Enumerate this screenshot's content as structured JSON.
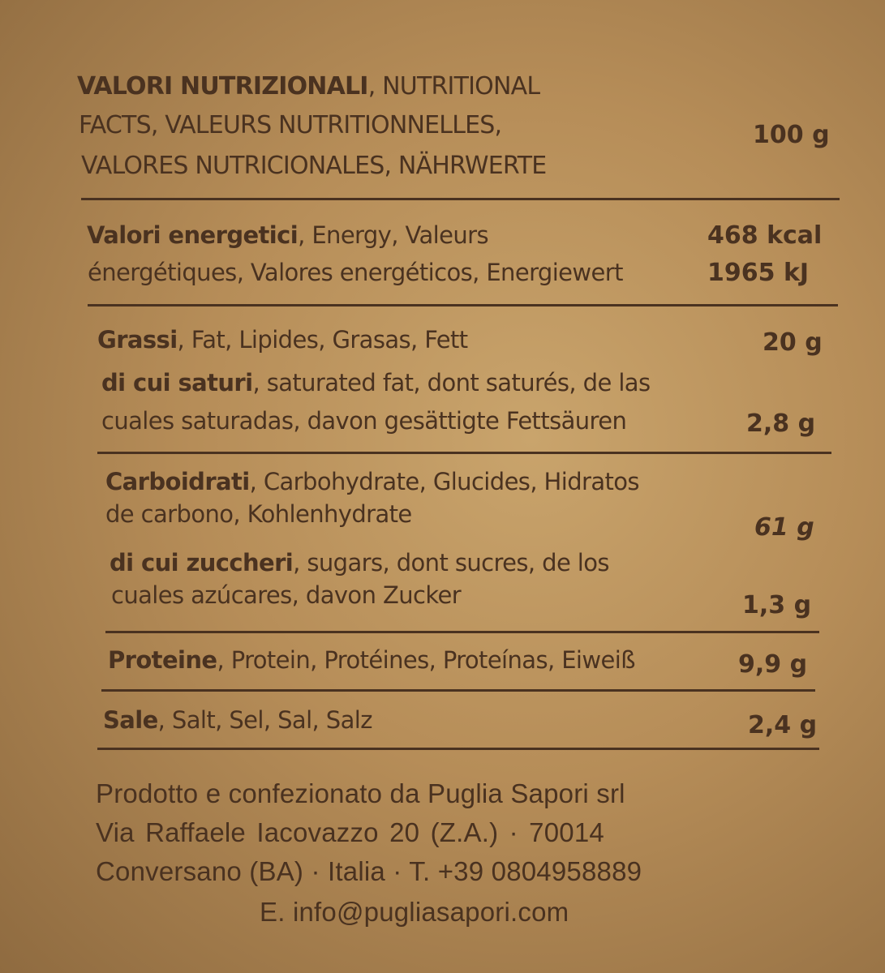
{
  "header": {
    "lines": [
      {
        "bold": "VALORI NUTRIZIONALI",
        "rest": ", NUTRITIONAL"
      },
      {
        "bold": "",
        "rest": "FACTS, VALEURS NUTRITIONNELLES,"
      },
      {
        "bold": "",
        "rest": "VALORES NUTRICIONALES, NÄHRWERTE"
      }
    ],
    "per": "100 g"
  },
  "energy": {
    "line1_bold": "Valori energetici",
    "line1_rest": ", Energy, Valeurs",
    "line2": "énergétiques, Valores energéticos, Energiewert",
    "kcal": "468  kcal",
    "kj": "1965  kJ"
  },
  "fat": {
    "bold": "Grassi",
    "rest": ", Fat, Lipides, Grasas, Fett",
    "value": "20 g"
  },
  "saturated": {
    "line1_bold": "di cui saturi",
    "line1_rest": ", saturated fat, dont saturés, de las",
    "line2": "cuales saturadas, davon gesättigte Fettsäuren",
    "value": "2,8 g"
  },
  "carbs": {
    "line1_bold": "Carboidrati",
    "line1_rest": ", Carbohydrate, Glucides, Hidratos",
    "line2": "de carbono, Kohlenhydrate",
    "value": "61 g"
  },
  "sugars": {
    "line1_bold": "di cui zuccheri",
    "line1_rest": ", sugars, dont sucres, de los",
    "line2": "cuales azúcares, davon Zucker",
    "value": "1,3 g"
  },
  "protein": {
    "bold": "Proteine",
    "rest": ", Protein, Protéines, Proteínas, Eiweiß",
    "value": "9,9 g"
  },
  "salt": {
    "bold": "Sale",
    "rest": ", Salt, Sel, Sal, Salz",
    "value": "2,4 g"
  },
  "footer": {
    "lines": [
      "Prodotto e confezionato da Puglia Sapori srl",
      "Via  Raffaele  Iacovazzo  20  (Z.A.)  ·  70014",
      "Conversano (BA) · Italia · T. +39 0804958889",
      "E. info@pugliasapori.com"
    ]
  }
}
